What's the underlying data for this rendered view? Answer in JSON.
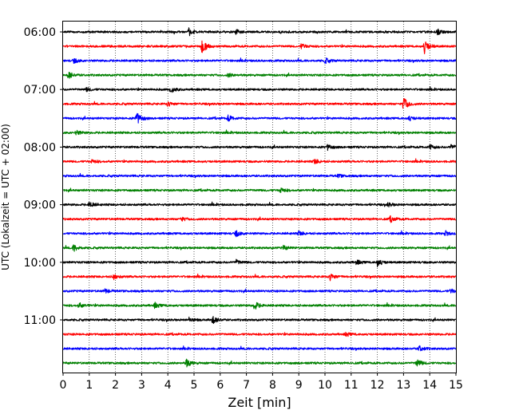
{
  "chart_data": {
    "type": "line",
    "title": "",
    "xlabel": "Zeit  [min]",
    "ylabel": "UTC (Lokalzeit = UTC + 02:00)",
    "xlim": [
      0,
      15
    ],
    "x_ticks": [
      "0",
      "1",
      "2",
      "3",
      "4",
      "5",
      "6",
      "7",
      "8",
      "9",
      "10",
      "11",
      "12",
      "13",
      "14",
      "15"
    ],
    "y_ticks": [
      "06:00",
      "07:00",
      "08:00",
      "09:00",
      "10:00",
      "11:00"
    ],
    "y_tick_rows": [
      0,
      4,
      8,
      12,
      16,
      20
    ],
    "grid": "vertical dotted",
    "colors": [
      "#000000",
      "#ff0000",
      "#0000ff",
      "#008000"
    ],
    "rows": [
      {
        "start": "06:00",
        "color": "#000000",
        "events": [
          [
            4.8,
            0.5
          ],
          [
            6.6,
            0.3
          ],
          [
            14.3,
            0.35
          ]
        ]
      },
      {
        "start": "06:15",
        "color": "#ff0000",
        "events": [
          [
            5.3,
            1.0
          ],
          [
            9.1,
            0.35
          ],
          [
            13.8,
            0.9
          ]
        ]
      },
      {
        "start": "06:30",
        "color": "#0000ff",
        "events": [
          [
            0.4,
            0.3
          ],
          [
            10.0,
            0.35
          ]
        ]
      },
      {
        "start": "06:45",
        "color": "#008000",
        "events": [
          [
            0.2,
            0.5
          ],
          [
            6.3,
            0.25
          ]
        ]
      },
      {
        "start": "07:00",
        "color": "#000000",
        "events": [
          [
            4.1,
            0.45
          ],
          [
            0.9,
            0.25
          ]
        ]
      },
      {
        "start": "07:15",
        "color": "#ff0000",
        "events": [
          [
            4.0,
            0.3
          ],
          [
            13.0,
            0.95
          ]
        ]
      },
      {
        "start": "07:30",
        "color": "#0000ff",
        "events": [
          [
            2.8,
            0.9
          ],
          [
            6.3,
            0.4
          ],
          [
            13.2,
            0.3
          ]
        ]
      },
      {
        "start": "07:45",
        "color": "#008000",
        "events": [
          [
            0.5,
            0.3
          ]
        ]
      },
      {
        "start": "08:00",
        "color": "#000000",
        "events": [
          [
            10.1,
            0.35
          ],
          [
            14.8,
            0.35
          ],
          [
            14.0,
            0.3
          ]
        ]
      },
      {
        "start": "08:15",
        "color": "#ff0000",
        "events": [
          [
            9.6,
            0.35
          ],
          [
            1.1,
            0.25
          ]
        ]
      },
      {
        "start": "08:30",
        "color": "#0000ff",
        "events": [
          [
            10.5,
            0.2
          ]
        ]
      },
      {
        "start": "08:45",
        "color": "#008000",
        "events": [
          [
            8.3,
            0.35
          ]
        ]
      },
      {
        "start": "09:00",
        "color": "#000000",
        "events": [
          [
            1.0,
            0.45
          ],
          [
            12.4,
            0.25
          ]
        ]
      },
      {
        "start": "09:15",
        "color": "#ff0000",
        "events": [
          [
            12.5,
            0.4
          ],
          [
            4.5,
            0.25
          ]
        ]
      },
      {
        "start": "09:30",
        "color": "#0000ff",
        "events": [
          [
            6.6,
            0.4
          ],
          [
            9.0,
            0.3
          ],
          [
            14.6,
            0.3
          ]
        ]
      },
      {
        "start": "09:45",
        "color": "#008000",
        "events": [
          [
            0.4,
            0.45
          ],
          [
            8.4,
            0.3
          ]
        ]
      },
      {
        "start": "10:00",
        "color": "#000000",
        "events": [
          [
            12.0,
            0.5
          ],
          [
            6.6,
            0.3
          ],
          [
            11.2,
            0.3
          ]
        ]
      },
      {
        "start": "10:15",
        "color": "#ff0000",
        "events": [
          [
            1.9,
            0.4
          ],
          [
            10.2,
            0.45
          ]
        ]
      },
      {
        "start": "10:30",
        "color": "#0000ff",
        "events": [
          [
            1.6,
            0.3
          ],
          [
            14.8,
            0.3
          ]
        ]
      },
      {
        "start": "10:45",
        "color": "#008000",
        "events": [
          [
            7.3,
            0.6
          ],
          [
            3.5,
            0.35
          ],
          [
            0.6,
            0.35
          ]
        ]
      },
      {
        "start": "11:00",
        "color": "#000000",
        "events": [
          [
            5.7,
            0.55
          ],
          [
            4.8,
            0.3
          ]
        ]
      },
      {
        "start": "11:15",
        "color": "#ff0000",
        "events": [
          [
            10.8,
            0.25
          ]
        ]
      },
      {
        "start": "11:30",
        "color": "#0000ff",
        "events": [
          [
            13.6,
            0.4
          ]
        ]
      },
      {
        "start": "11:45",
        "color": "#008000",
        "events": [
          [
            4.7,
            0.6
          ],
          [
            13.5,
            0.55
          ]
        ]
      }
    ]
  }
}
